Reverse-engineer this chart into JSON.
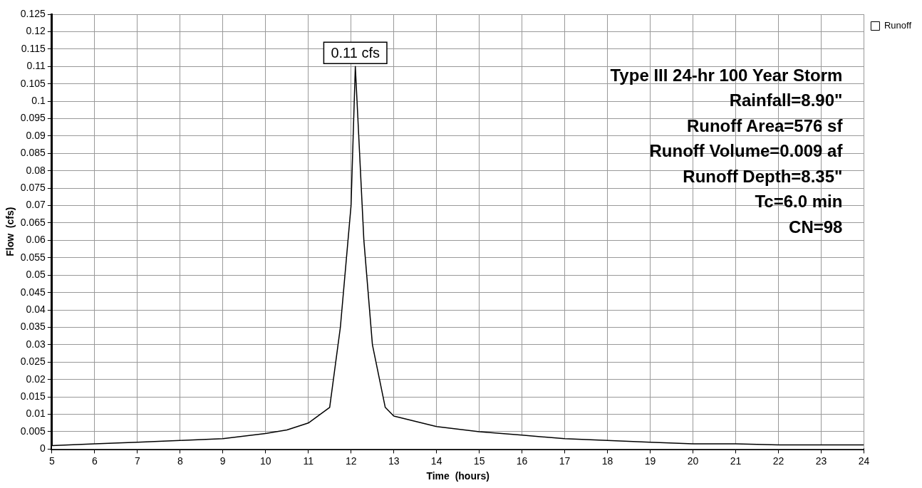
{
  "chart_data": {
    "type": "area",
    "xlabel": "Time  (hours)",
    "ylabel": "Flow  (cfs)",
    "x": [
      5,
      6,
      7,
      8,
      9,
      10,
      10.5,
      11,
      11.5,
      11.75,
      12,
      12.1,
      12.3,
      12.5,
      12.8,
      13,
      14,
      15,
      16,
      17,
      18,
      19,
      20,
      21,
      22,
      23,
      24
    ],
    "series": [
      {
        "name": "Runoff",
        "color": "#ffffff",
        "values": [
          0.001,
          0.0015,
          0.002,
          0.0025,
          0.003,
          0.0045,
          0.0055,
          0.0075,
          0.012,
          0.035,
          0.07,
          0.11,
          0.06,
          0.03,
          0.012,
          0.0095,
          0.0065,
          0.005,
          0.004,
          0.003,
          0.0025,
          0.002,
          0.0015,
          0.0015,
          0.0012,
          0.0012,
          0.0012
        ]
      }
    ],
    "xlim": [
      5,
      24
    ],
    "xticks": [
      5,
      6,
      7,
      8,
      9,
      10,
      11,
      12,
      13,
      14,
      15,
      16,
      17,
      18,
      19,
      20,
      21,
      22,
      23,
      24
    ],
    "ylim": [
      0,
      0.125
    ],
    "yticks": [
      0,
      0.005,
      0.01,
      0.015,
      0.02,
      0.025,
      0.03,
      0.035,
      0.04,
      0.045,
      0.05,
      0.055,
      0.06,
      0.065,
      0.07,
      0.075,
      0.08,
      0.085,
      0.09,
      0.095,
      0.1,
      0.105,
      0.11,
      0.115,
      0.12,
      0.125
    ],
    "grid": true,
    "legend": "top right",
    "line_style": "solid",
    "marker": "none",
    "annotations": [
      {
        "text": "0.11 cfs",
        "x": 12.1,
        "y": 0.11
      },
      "Type III 24-hr 100 Year Storm",
      "Rainfall=8.90\"",
      "Runoff Area=576 sf",
      "Runoff Volume=0.009 af",
      "Runoff Depth=8.35\"",
      "Tc=6.0 min",
      "CN=98"
    ]
  }
}
